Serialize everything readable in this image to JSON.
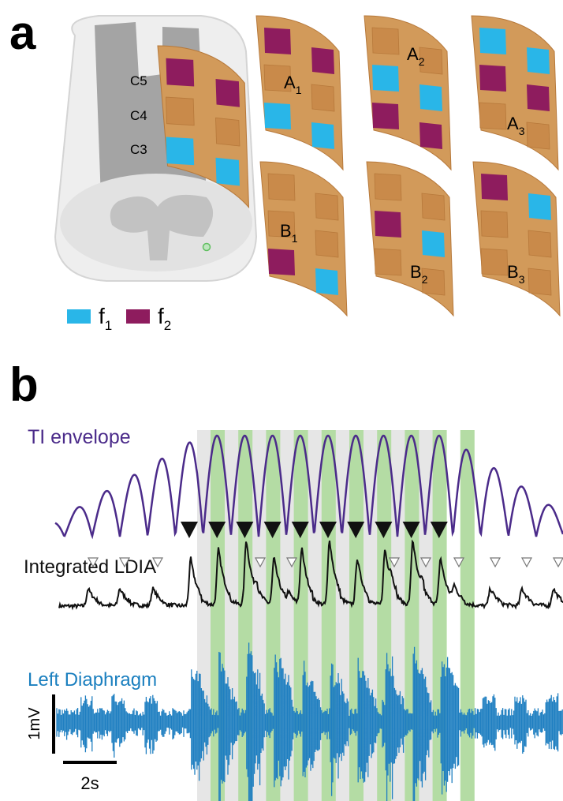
{
  "panel_a": {
    "label": "a",
    "levels": [
      "C5",
      "C4",
      "C3"
    ],
    "configs": [
      {
        "letter": "A",
        "sub": "1"
      },
      {
        "letter": "A",
        "sub": "2"
      },
      {
        "letter": "A",
        "sub": "3"
      },
      {
        "letter": "B",
        "sub": "1"
      },
      {
        "letter": "B",
        "sub": "2"
      },
      {
        "letter": "B",
        "sub": "3"
      }
    ],
    "legend": [
      {
        "symbol": "f",
        "sub": "1",
        "color": "#29b6e8"
      },
      {
        "symbol": "f",
        "sub": "2",
        "color": "#8e1c5e"
      }
    ]
  },
  "panel_b": {
    "label": "b",
    "traces": [
      "TI envelope",
      "Integrated LDIA",
      "Left Diaphragm"
    ],
    "scale": {
      "amplitude": "1mV",
      "time": "2s"
    }
  }
}
